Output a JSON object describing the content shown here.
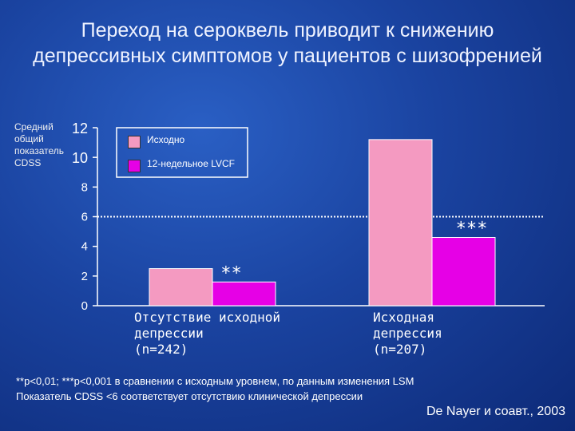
{
  "title": "Переход на сероквель приводит к снижению депрессивных симптомов у пациентов с шизофренией",
  "footnote_line1": "**p<0,01; ***p<0,001 в сравнении с исходным  уровнем, по данным изменения LSM",
  "footnote_line2": "Показатель CDSS <6 соответствует отсутствию клинической депрессии",
  "source": "De Nayer и соавт., 2003",
  "colors": {
    "baseline": "#f49ac1",
    "week12": "#e600e6",
    "background": "#1a43a0"
  },
  "chart_data": {
    "type": "bar",
    "ylabel": "Средний общий показатель CDSS",
    "xlabel": "",
    "ylim": [
      0,
      12
    ],
    "yticks": [
      0,
      2,
      4,
      6,
      8,
      10,
      12
    ],
    "categories": [
      [
        "Отсутствие исходной",
        "депрессии",
        "(n=242)"
      ],
      [
        "Исходная",
        "депрессия",
        "(n=207)"
      ]
    ],
    "series": [
      {
        "name": "Исходно",
        "color": "#f49ac1",
        "values": [
          2.5,
          11.2
        ]
      },
      {
        "name": "12-недельное LVCF",
        "color": "#e600e6",
        "values": [
          1.6,
          4.6
        ]
      }
    ],
    "significance": [
      "**",
      "***"
    ],
    "reference_line": 6,
    "legend": "top-left"
  }
}
